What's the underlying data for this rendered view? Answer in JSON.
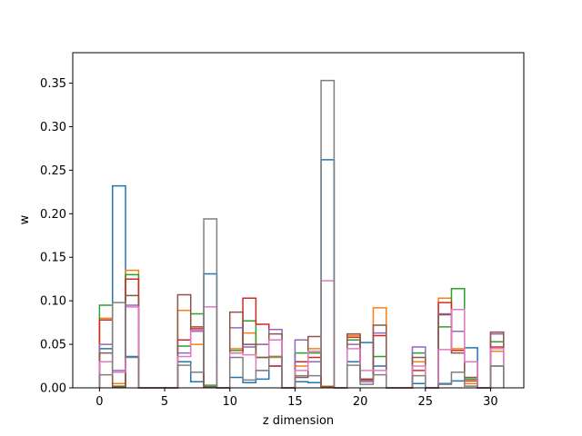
{
  "chart_data": {
    "type": "step-histogram",
    "xlabel": "z dimension",
    "ylabel": "w",
    "xlim": [
      -2.05,
      32.55
    ],
    "ylim": [
      0,
      0.385
    ],
    "grid": false,
    "xticks": [
      0,
      5,
      10,
      15,
      20,
      25,
      30
    ],
    "yticks": [
      0.0,
      0.05,
      0.1,
      0.15,
      0.2,
      0.25,
      0.3,
      0.35
    ],
    "bin_edges": [
      0,
      1,
      2,
      3,
      4,
      5,
      6,
      7,
      8,
      9,
      10,
      11,
      12,
      13,
      14,
      15,
      16,
      17,
      18,
      19,
      20,
      21,
      22,
      23,
      24,
      25,
      26,
      27,
      28,
      29,
      30,
      31
    ],
    "series": [
      {
        "color": "#1f77b4",
        "values": [
          0.045,
          0.232,
          0.036,
          0,
          0,
          0,
          0.03,
          0.007,
          0.131,
          0,
          0.012,
          0.006,
          0.01,
          0.025,
          0,
          0.007,
          0.006,
          0.262,
          0,
          0.03,
          0.052,
          0.025,
          0,
          0,
          0.005,
          0,
          0.005,
          0.008,
          0.046,
          0,
          0.025
        ]
      },
      {
        "color": "#ff7f0e",
        "values": [
          0.08,
          0.005,
          0.135,
          0,
          0,
          0,
          0.089,
          0.05,
          0.001,
          0,
          0.045,
          0.063,
          0.05,
          0.035,
          0,
          0.025,
          0.045,
          0.002,
          0,
          0.06,
          0.01,
          0.092,
          0,
          0,
          0.03,
          0,
          0.103,
          0.045,
          0.005,
          0,
          0.042
        ]
      },
      {
        "color": "#2ca02c",
        "values": [
          0.095,
          0.002,
          0.13,
          0,
          0,
          0,
          0.048,
          0.085,
          0.003,
          0,
          0.043,
          0.077,
          0.035,
          0.036,
          0,
          0.04,
          0.04,
          0.001,
          0,
          0.055,
          0.01,
          0.036,
          0,
          0,
          0.04,
          0,
          0.07,
          0.114,
          0.01,
          0,
          0.053
        ]
      },
      {
        "color": "#d62728",
        "values": [
          0.078,
          0.001,
          0.125,
          0,
          0,
          0,
          0.055,
          0.068,
          0.001,
          0,
          0.04,
          0.103,
          0.073,
          0.025,
          0,
          0.03,
          0.035,
          0.001,
          0,
          0.058,
          0.009,
          0.06,
          0,
          0,
          0.02,
          0,
          0.098,
          0.043,
          0.008,
          0,
          0.047
        ]
      },
      {
        "color": "#9467bd",
        "values": [
          0.05,
          0.02,
          0.095,
          0,
          0,
          0,
          0.04,
          0.065,
          0.001,
          0,
          0.069,
          0.047,
          0.05,
          0.067,
          0,
          0.055,
          0.03,
          0.001,
          0,
          0.05,
          0.007,
          0.063,
          0,
          0,
          0.047,
          0,
          0.085,
          0.065,
          0.03,
          0,
          0.062
        ]
      },
      {
        "color": "#8c564b",
        "values": [
          0.04,
          0.001,
          0.106,
          0,
          0,
          0,
          0.107,
          0.07,
          0.001,
          0,
          0.087,
          0.05,
          0.035,
          0.062,
          0,
          0.012,
          0.059,
          0.001,
          0,
          0.062,
          0.01,
          0.072,
          0,
          0,
          0.035,
          0,
          0.084,
          0.04,
          0.012,
          0,
          0.064
        ]
      },
      {
        "color": "#e377c2",
        "values": [
          0.03,
          0.018,
          0.093,
          0,
          0,
          0,
          0.036,
          0.066,
          0.093,
          0,
          0.04,
          0.038,
          0.02,
          0.055,
          0,
          0.02,
          0.042,
          0.123,
          0,
          0.045,
          0.02,
          0.02,
          0,
          0,
          0.025,
          0,
          0.044,
          0.09,
          0.03,
          0,
          0.045
        ]
      },
      {
        "color": "#7f7f7f",
        "values": [
          0.015,
          0.098,
          0.035,
          0,
          0,
          0,
          0.026,
          0.018,
          0.194,
          0,
          0.035,
          0.009,
          0.02,
          0.036,
          0,
          0.014,
          0.014,
          0.353,
          0,
          0.026,
          0.004,
          0.015,
          0,
          0,
          0.014,
          0,
          0.004,
          0.018,
          0.002,
          0,
          0.025
        ]
      }
    ]
  }
}
